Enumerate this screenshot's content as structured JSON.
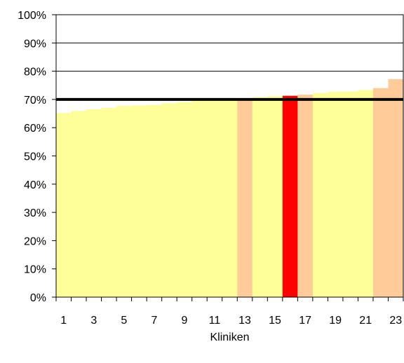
{
  "chart_data": {
    "type": "bar",
    "title": "",
    "xlabel": "Kliniken",
    "ylabel": "",
    "ylim": [
      0,
      1
    ],
    "yticks": [
      0,
      0.1,
      0.2,
      0.3,
      0.4,
      0.5,
      0.6,
      0.7,
      0.8,
      0.9,
      1.0
    ],
    "ytick_labels": [
      "0%",
      "10%",
      "20%",
      "30%",
      "40%",
      "50%",
      "60%",
      "70%",
      "80%",
      "90%",
      "100%"
    ],
    "grid": "horizontal",
    "reference_line": 0.7,
    "categories": [
      "1",
      "2",
      "3",
      "4",
      "5",
      "6",
      "7",
      "8",
      "9",
      "10",
      "11",
      "12",
      "13",
      "14",
      "15",
      "16",
      "17",
      "18",
      "19",
      "20",
      "21",
      "22",
      "23"
    ],
    "xtick_labels": [
      "1",
      "3",
      "5",
      "7",
      "9",
      "11",
      "13",
      "15",
      "17",
      "19",
      "21",
      "23"
    ],
    "values": [
      0.652,
      0.659,
      0.665,
      0.67,
      0.677,
      0.679,
      0.681,
      0.686,
      0.69,
      0.696,
      0.698,
      0.7,
      0.704,
      0.708,
      0.712,
      0.713,
      0.717,
      0.723,
      0.727,
      0.728,
      0.733,
      0.74,
      0.772
    ],
    "bar_colors": [
      "#ffff99",
      "#ffff99",
      "#ffff99",
      "#ffff99",
      "#ffff99",
      "#ffff99",
      "#ffff99",
      "#ffff99",
      "#ffff99",
      "#ffff99",
      "#ffff99",
      "#ffff99",
      "#ffcc99",
      "#ffff99",
      "#ffff99",
      "#ff0000",
      "#ffcc99",
      "#ffff99",
      "#ffff99",
      "#ffff99",
      "#ffff99",
      "#ffcc99",
      "#ffcc99"
    ],
    "colors": {
      "default": "#ffff99",
      "highlight": "#ffcc99",
      "selected": "#ff0000",
      "reference_line": "#000000",
      "gridline": "#000000"
    }
  }
}
